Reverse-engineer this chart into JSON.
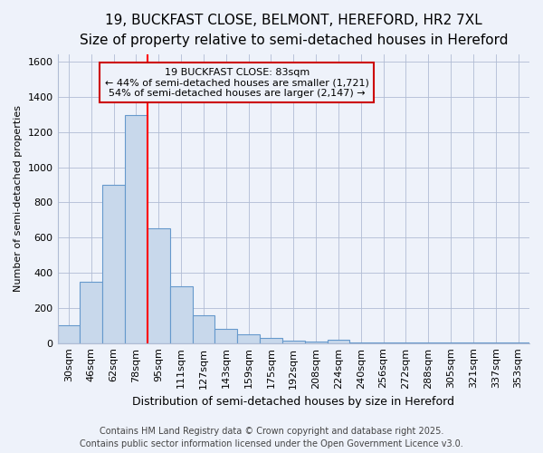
{
  "title_line1": "19, BUCKFAST CLOSE, BELMONT, HEREFORD, HR2 7XL",
  "title_line2": "Size of property relative to semi-detached houses in Hereford",
  "xlabel": "Distribution of semi-detached houses by size in Hereford",
  "ylabel": "Number of semi-detached properties",
  "categories": [
    "30sqm",
    "46sqm",
    "62sqm",
    "78sqm",
    "95sqm",
    "111sqm",
    "127sqm",
    "143sqm",
    "159sqm",
    "175sqm",
    "192sqm",
    "208sqm",
    "224sqm",
    "240sqm",
    "256sqm",
    "272sqm",
    "288sqm",
    "305sqm",
    "321sqm",
    "337sqm",
    "353sqm"
  ],
  "values": [
    100,
    350,
    900,
    1295,
    650,
    325,
    160,
    82,
    48,
    27,
    15,
    10,
    18,
    5,
    5,
    3,
    1,
    3,
    1,
    1,
    1
  ],
  "bar_color": "#c8d8eb",
  "bar_edge_color": "#6699cc",
  "red_line_x": 3.5,
  "annotation_title": "19 BUCKFAST CLOSE: 83sqm",
  "annotation_line2": "← 44% of semi-detached houses are smaller (1,721)",
  "annotation_line3": "54% of semi-detached houses are larger (2,147) →",
  "annotation_box_color": "#cc0000",
  "ylim": [
    0,
    1640
  ],
  "yticks": [
    0,
    200,
    400,
    600,
    800,
    1000,
    1200,
    1400,
    1600
  ],
  "footer_line1": "Contains HM Land Registry data © Crown copyright and database right 2025.",
  "footer_line2": "Contains public sector information licensed under the Open Government Licence v3.0.",
  "background_color": "#eef2fa",
  "grid_color": "#b0bcd4",
  "title1_fontsize": 11,
  "title2_fontsize": 9,
  "xlabel_fontsize": 9,
  "ylabel_fontsize": 8,
  "tick_fontsize": 8,
  "footer_fontsize": 7,
  "ann_fontsize": 8
}
